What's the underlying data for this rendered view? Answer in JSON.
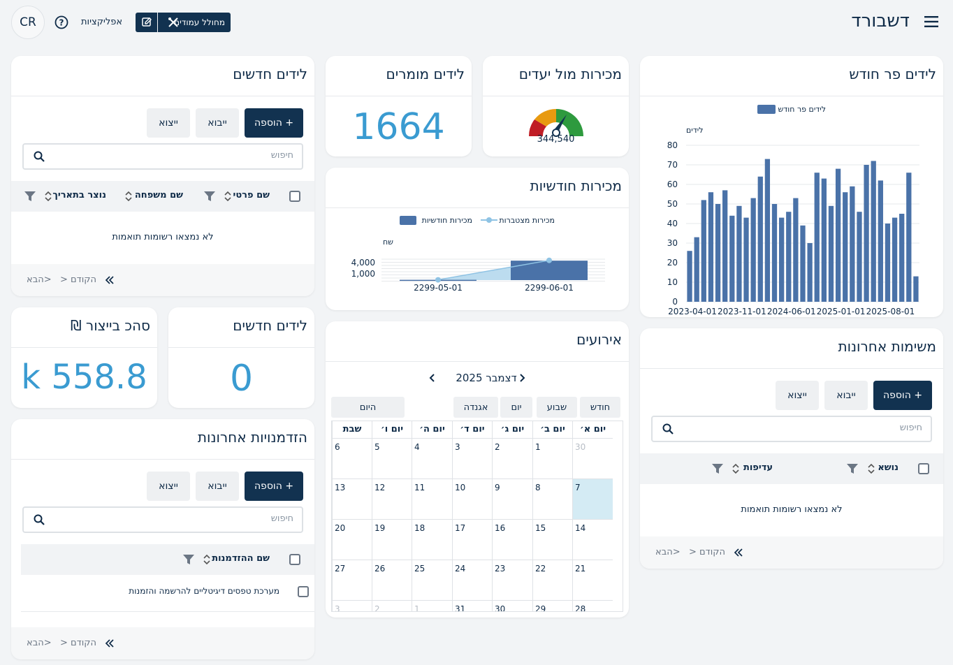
{
  "header": {
    "title": "דשבורד",
    "avatar": "CR",
    "apps_label": "אפליקציות",
    "layout_button": "מחולל עמודים"
  },
  "leads_new_table": {
    "title": "לידים חדשים",
    "add": "+ הוספה",
    "import": "ייבוא",
    "export": "ייצוא",
    "search_placeholder": "חיפוש",
    "columns": [
      "שם פרטי",
      "שם משפחה",
      "נוצר בתאריך"
    ],
    "empty": "לא נמצאו רשומות תואמות",
    "prev": "הקודם",
    "next": "הבא"
  },
  "leads_converted": {
    "title": "לידים מומרים",
    "value": "1664"
  },
  "sales_vs_target": {
    "title": "מכירות מול יעדים",
    "value": "344,540"
  },
  "leads_per_month": {
    "title": "לידים פר חודש",
    "legend": "לידים פר חודש",
    "ylabel": "לידים"
  },
  "monthly_sales": {
    "title": "מכירות חודשיות",
    "legend_bar": "מכירות חודשיות",
    "legend_line": "מכירות מצטברות",
    "ylabel": "שח"
  },
  "leads_new_kpi": {
    "title": "לידים חדשים",
    "value": "0"
  },
  "production_total": {
    "title": "סהכ בייצור ₪",
    "value": "558.8 k"
  },
  "events": {
    "title": "אירועים",
    "month_label": "דצמבר 2025",
    "view_month": "חודש",
    "view_week": "שבוע",
    "view_day": "יום",
    "view_agenda": "אגנדה",
    "today": "היום",
    "weekdays": [
      "יום א׳",
      "יום ב׳",
      "יום ג׳",
      "יום ד׳",
      "יום ה׳",
      "יום ו׳",
      "שבת"
    ],
    "weeks": [
      [
        "30",
        "1",
        "2",
        "3",
        "4",
        "5",
        "6"
      ],
      [
        "7",
        "8",
        "9",
        "10",
        "11",
        "12",
        "13"
      ],
      [
        "14",
        "15",
        "16",
        "17",
        "18",
        "19",
        "20"
      ],
      [
        "21",
        "22",
        "23",
        "24",
        "25",
        "26",
        "27"
      ],
      [
        "28",
        "29",
        "30",
        "31",
        "1",
        "2",
        "3"
      ]
    ]
  },
  "recent_tasks": {
    "title": "משימות אחרונות",
    "add": "+ הוספה",
    "import": "ייבוא",
    "export": "ייצוא",
    "search_placeholder": "חיפוש",
    "columns": [
      "נושא",
      "עדיפות"
    ],
    "empty": "לא נמצאו רשומות תואמות",
    "prev": "הקודם",
    "next": "הבא"
  },
  "recent_orders": {
    "title": "הזדמנויות אחרונות",
    "add": "+ הוספה",
    "import": "ייבוא",
    "export": "ייצוא",
    "search_placeholder": "חיפוש",
    "columns": [
      "שם ההזדמנות"
    ],
    "rows": [
      "מערכת טפסים דיגיטליים להרשמה והזמנות"
    ],
    "prev": "הקודם",
    "next": "הבא"
  },
  "colors": {
    "accent": "#123250",
    "bar": "#4a72a8",
    "number": "#3a9bd1"
  },
  "chart_data": [
    {
      "type": "bar",
      "title": "לידים פר חודש",
      "ylabel": "לידים",
      "ylim": [
        0,
        80
      ],
      "yticks": [
        0,
        10,
        20,
        30,
        40,
        50,
        60,
        70,
        80
      ],
      "xticks": [
        "2023-04-01",
        "2023-11-01",
        "2024-06-01",
        "2025-01-01",
        "2025-08-01"
      ],
      "series": [
        {
          "name": "לידים פר חודש",
          "values": [
            26,
            33,
            52,
            56,
            50,
            57,
            44,
            49,
            43,
            53,
            64,
            73,
            50,
            43,
            46,
            53,
            39,
            30,
            66,
            63,
            49,
            68,
            56,
            59,
            46,
            70,
            72,
            62,
            40,
            43,
            45,
            66,
            13
          ]
        }
      ]
    },
    {
      "type": "bar",
      "title": "מכירות חודשיות",
      "ylabel": "שח",
      "categories": [
        "2299-05-01",
        "2299-06-01"
      ],
      "yticks": [
        1000,
        4000
      ],
      "series": [
        {
          "name": "מכירות חודשיות",
          "values": [
            100,
            6500
          ]
        },
        {
          "name": "מכירות מצטברות",
          "values": [
            100,
            6600
          ]
        }
      ]
    },
    {
      "type": "gauge",
      "title": "מכירות מול יעדים",
      "value": 344540
    }
  ]
}
